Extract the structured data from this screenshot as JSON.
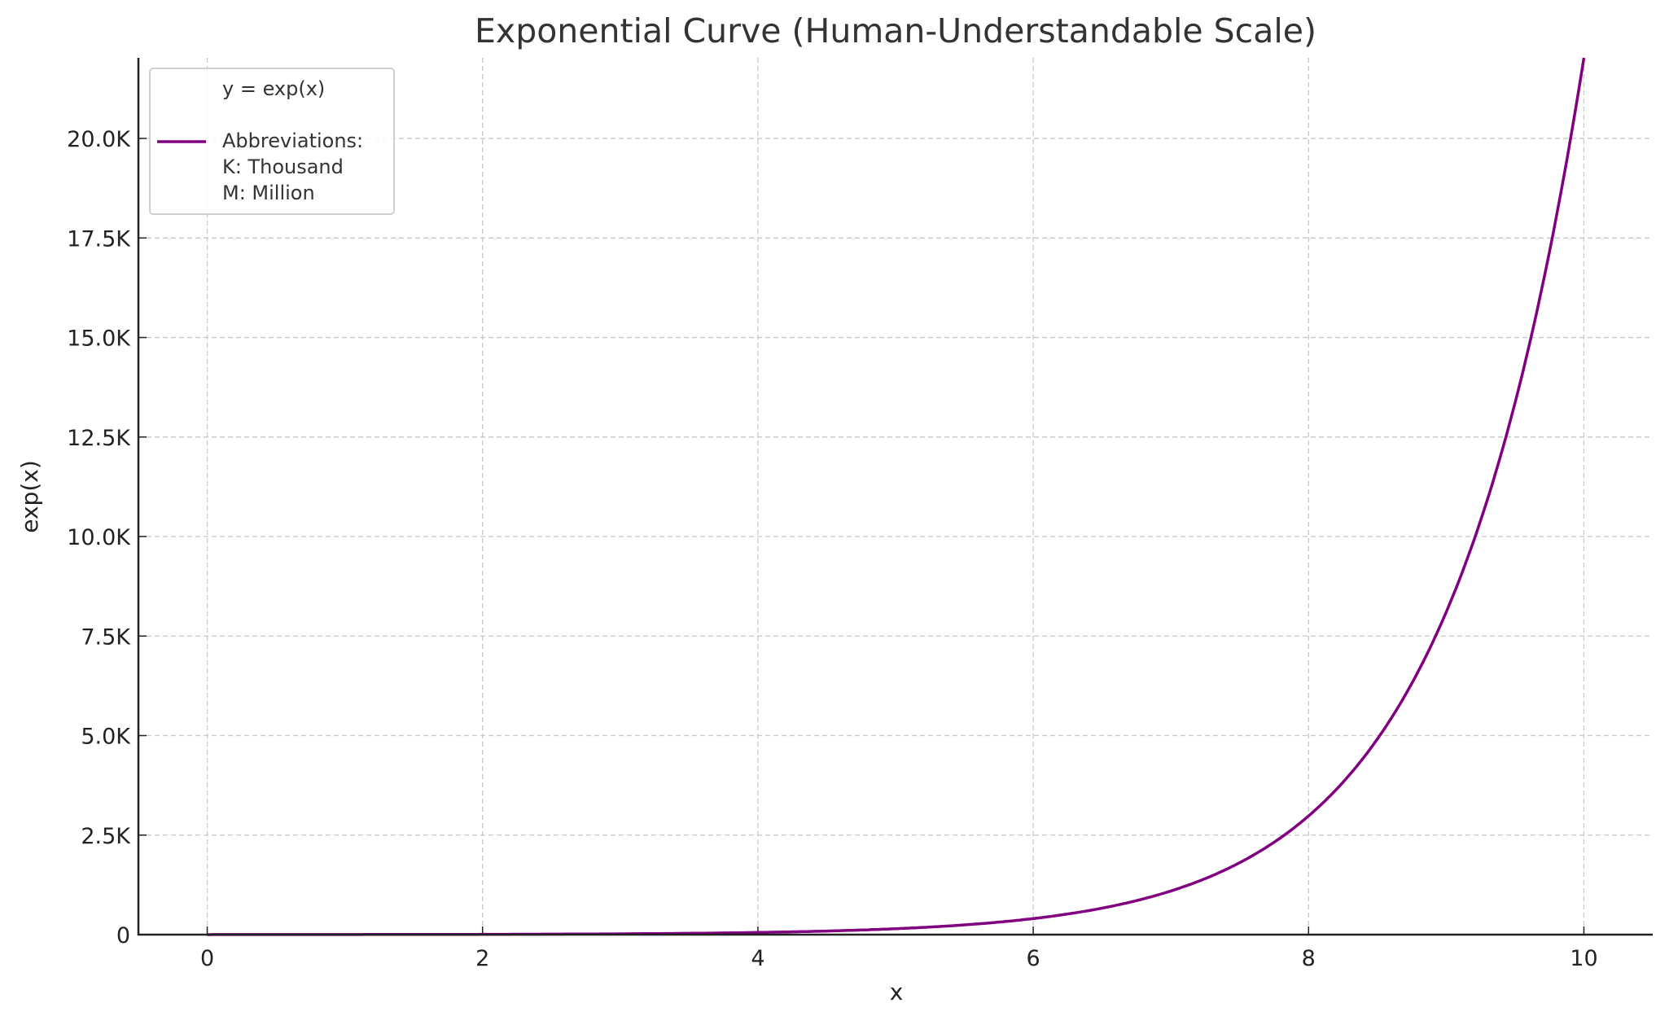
{
  "chart_data": {
    "type": "line",
    "title": "Exponential Curve (Human-Understandable Scale)",
    "xlabel": "x",
    "ylabel": "exp(x)",
    "xlim": [
      -0.5,
      10.5
    ],
    "ylim": [
      0,
      22026
    ],
    "xticks": [
      0,
      2,
      4,
      6,
      8,
      10
    ],
    "xtick_labels": [
      "0",
      "2",
      "4",
      "6",
      "8",
      "10"
    ],
    "yticks": [
      0,
      2500,
      5000,
      7500,
      10000,
      12500,
      15000,
      17500,
      20000
    ],
    "ytick_labels": [
      "0",
      "2.5K",
      "5.0K",
      "7.5K",
      "10.0K",
      "12.5K",
      "15.0K",
      "17.5K",
      "20.0K"
    ],
    "grid": true,
    "legend_placement": "top-left",
    "legend": {
      "header": "y = exp(x)",
      "lines": [
        "Abbreviations:",
        "K: Thousand",
        "M: Million"
      ]
    },
    "series": [
      {
        "function": "exp(x)",
        "x_range": [
          0,
          10
        ],
        "color": "#800080"
      }
    ]
  }
}
